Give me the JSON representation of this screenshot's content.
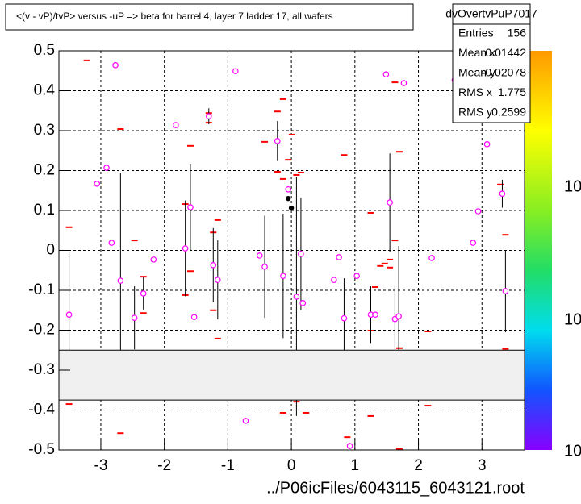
{
  "chart_data": {
    "type": "scatter",
    "title": "<(v - vP)/tvP> versus  -uP => beta for barrel 4, layer 7 ladder 17, all wafers",
    "xlabel": "../P06icFiles/6043115_6043121.root",
    "xlim": [
      -3.66,
      3.67
    ],
    "ylim": [
      -0.5,
      0.5
    ],
    "xticks": [
      -3,
      -2,
      -1,
      0,
      1,
      2,
      3
    ],
    "yticks": [
      -0.5,
      -0.4,
      -0.3,
      -0.2,
      -0.1,
      0,
      0.1,
      0.2,
      0.3,
      0.4,
      0.5
    ],
    "grid": true,
    "band": [
      -0.375,
      -0.25
    ],
    "band_color": "#f0f0f0",
    "series": [
      {
        "marker": "dash",
        "color": "#ff0000",
        "x": [
          -3.5,
          -3.5,
          -3.22,
          -2.69,
          -2.69,
          -2.47,
          -2.33,
          -2.33,
          -1.67,
          -1.67,
          -1.59,
          -1.59,
          -1.3,
          -1.3,
          -1.23,
          -1.23,
          -1.16,
          -1.16,
          -0.42,
          -0.22,
          -0.22,
          -0.13,
          -0.13,
          -0.13,
          -0.05,
          0.01,
          0.08,
          0.08,
          0.15,
          0.23,
          0.83,
          0.88,
          1.25,
          1.25,
          1.25,
          1.32,
          1.4,
          1.47,
          1.55,
          1.55,
          1.63,
          1.63,
          1.7,
          1.7,
          1.7,
          2.15,
          2.15,
          3.29,
          3.37,
          3.37
        ],
        "values": [
          0.058,
          -0.385,
          0.476,
          -0.458,
          0.304,
          0.025,
          -0.066,
          -0.157,
          0.116,
          -0.112,
          0.262,
          -0.052,
          0.344,
          0.32,
          0.045,
          -0.15,
          0.076,
          -0.221,
          0.272,
          0.197,
          0.348,
          0.379,
          0.179,
          -0.407,
          0.227,
          0.29,
          0.189,
          -0.379,
          0.195,
          -0.407,
          0.239,
          -0.468,
          0.094,
          -0.201,
          -0.415,
          -0.092,
          -0.039,
          -0.033,
          -0.023,
          -0.043,
          0.025,
          0.421,
          0.247,
          -0.245,
          -0.498,
          -0.203,
          -0.389,
          0.165,
          0.039,
          -0.247
        ]
      },
      {
        "marker": "circle",
        "color": "#ff00ff",
        "x": [
          -3.5,
          -3.06,
          -2.91,
          -2.83,
          -2.77,
          -2.69,
          -2.47,
          -2.33,
          -2.17,
          -1.82,
          -1.67,
          -1.59,
          -1.53,
          -1.3,
          -1.23,
          -1.16,
          -0.88,
          -0.5,
          -0.42,
          -0.22,
          -0.13,
          -0.05,
          0.08,
          0.15,
          0.18,
          0.75,
          0.67,
          0.83,
          0.92,
          1.03,
          -0.72,
          1.25,
          1.32,
          1.49,
          1.55,
          1.63,
          1.69,
          1.77,
          2.21,
          2.57,
          2.86,
          2.94,
          3.08,
          3.32,
          3.37
        ],
        "values": [
          -0.161,
          0.167,
          0.207,
          0.019,
          0.464,
          -0.076,
          -0.169,
          -0.108,
          -0.023,
          0.314,
          0.005,
          0.108,
          -0.167,
          0.336,
          -0.037,
          -0.074,
          0.449,
          -0.013,
          -0.041,
          0.274,
          -0.064,
          0.153,
          -0.116,
          -0.009,
          -0.132,
          -0.017,
          -0.074,
          -0.17,
          -0.49,
          -0.064,
          -0.427,
          -0.161,
          -0.161,
          0.441,
          0.12,
          -0.172,
          -0.165,
          0.419,
          -0.019,
          0.427,
          0.019,
          0.098,
          0.266,
          0.142,
          -0.102
        ],
        "errors": [
          0.156,
          0,
          0,
          0,
          0,
          0.269,
          0.079,
          0.04,
          0,
          0,
          0.12,
          0.109,
          0,
          0.02,
          0.093,
          0.099,
          0,
          0,
          0.128,
          0.05,
          0.156,
          0,
          0.299,
          0.141,
          0,
          0,
          0,
          0.1,
          0,
          0,
          0,
          0.071,
          0,
          0,
          0.123,
          0.083,
          0.176,
          0,
          0,
          0,
          0,
          0,
          0,
          0.035,
          0.103
        ]
      },
      {
        "marker": "dot",
        "color": "#000000",
        "x": [
          -0.05,
          0.0
        ],
        "values": [
          0.13,
          0.106
        ]
      }
    ],
    "stats": {
      "title": "dvOvertvPuP7017",
      "rows": [
        {
          "label": "Entries",
          "value": 156
        },
        {
          "label": "Mean x",
          "value": 0.01442
        },
        {
          "label": "Mean y",
          "value": -0.02078
        },
        {
          "label": "RMS x",
          "value": 1.775
        },
        {
          "label": "RMS y",
          "value": 0.2599
        }
      ]
    },
    "palette_labels": [
      "10",
      "10",
      "10"
    ]
  }
}
